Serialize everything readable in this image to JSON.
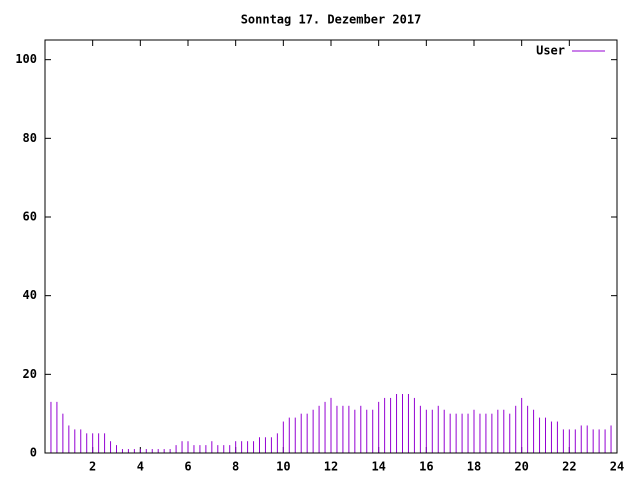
{
  "chart_data": {
    "type": "impulse",
    "title": "Sonntag 17. Dezember 2017",
    "series": [
      {
        "name": "User",
        "color": "#9400d3",
        "values": [
          14,
          13,
          13,
          10,
          7,
          6,
          6,
          5,
          5,
          5,
          5,
          3,
          2,
          1,
          1,
          1,
          1,
          1,
          1,
          1,
          1,
          1,
          2,
          3,
          3,
          2,
          2,
          2,
          3,
          2,
          2,
          2,
          3,
          3,
          3,
          3,
          4,
          4,
          4,
          5,
          8,
          9,
          9,
          10,
          10,
          11,
          12,
          13,
          14,
          12,
          12,
          12,
          11,
          12,
          11,
          11,
          13,
          14,
          14,
          15,
          15,
          15,
          14,
          12,
          11,
          11,
          12,
          11,
          10,
          10,
          10,
          10,
          11,
          10,
          10,
          10,
          11,
          11,
          10,
          12,
          14,
          12,
          11,
          9,
          9,
          8,
          8,
          6,
          6,
          6,
          7,
          7,
          6,
          6,
          6,
          7
        ]
      }
    ],
    "x": [
      0,
      0.25,
      0.5,
      0.75,
      1,
      1.25,
      1.5,
      1.75,
      2,
      2.25,
      2.5,
      2.75,
      3,
      3.25,
      3.5,
      3.75,
      4,
      4.25,
      4.5,
      4.75,
      5,
      5.25,
      5.5,
      5.75,
      6,
      6.25,
      6.5,
      6.75,
      7,
      7.25,
      7.5,
      7.75,
      8,
      8.25,
      8.5,
      8.75,
      9,
      9.25,
      9.5,
      9.75,
      10,
      10.25,
      10.5,
      10.75,
      11,
      11.25,
      11.5,
      11.75,
      12,
      12.25,
      12.5,
      12.75,
      13,
      13.25,
      13.5,
      13.75,
      14,
      14.25,
      14.5,
      14.75,
      15,
      15.25,
      15.5,
      15.75,
      16,
      16.25,
      16.5,
      16.75,
      17,
      17.25,
      17.5,
      17.75,
      18,
      18.25,
      18.5,
      18.75,
      19,
      19.25,
      19.5,
      19.75,
      20,
      20.25,
      20.5,
      20.75,
      21,
      21.25,
      21.5,
      21.75,
      22,
      22.25,
      22.5,
      22.75,
      23,
      23.25,
      23.5,
      23.75
    ],
    "xlim": [
      0,
      24
    ],
    "xticks": [
      2,
      4,
      6,
      8,
      10,
      12,
      14,
      16,
      18,
      20,
      22,
      24
    ],
    "ylim": [
      0,
      105
    ],
    "yticks": [
      0,
      20,
      40,
      60,
      80,
      100
    ],
    "legend": "top-right"
  }
}
